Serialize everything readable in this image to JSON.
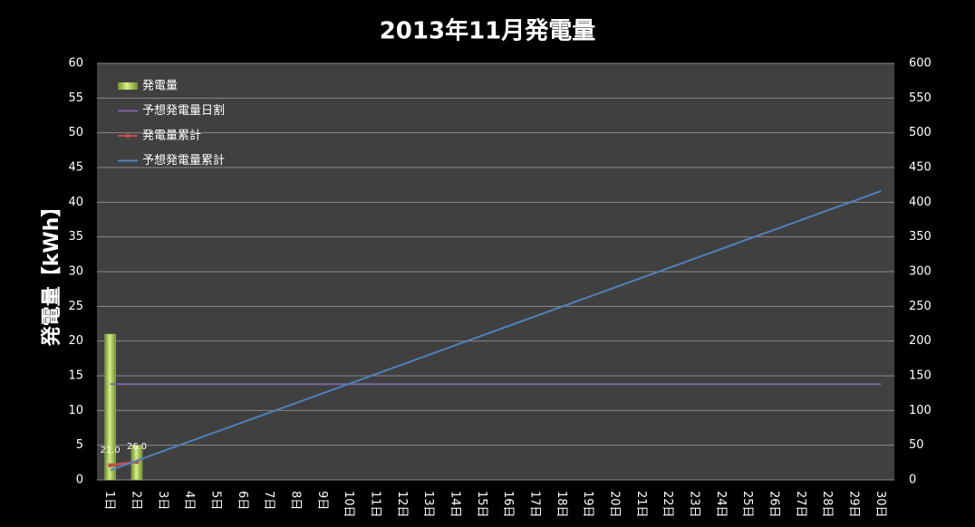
{
  "chart_data": {
    "type": "bar",
    "title": "2013年11月発電量",
    "y_label": "発電量【kWh】",
    "categories": [
      "1日",
      "2日",
      "3日",
      "4日",
      "5日",
      "6日",
      "7日",
      "8日",
      "9日",
      "10日",
      "11日",
      "12日",
      "13日",
      "14日",
      "15日",
      "16日",
      "17日",
      "18日",
      "19日",
      "20日",
      "21日",
      "22日",
      "23日",
      "24日",
      "25日",
      "26日",
      "27日",
      "28日",
      "29日",
      "30日"
    ],
    "series": [
      {
        "name": "発電量",
        "type": "bar",
        "color": "#9bbb59",
        "values": [
          21,
          5,
          null,
          null,
          null,
          null,
          null,
          null,
          null,
          null,
          null,
          null,
          null,
          null,
          null,
          null,
          null,
          null,
          null,
          null,
          null,
          null,
          null,
          null,
          null,
          null,
          null,
          null,
          null,
          null
        ]
      },
      {
        "name": "予想発電量日割",
        "type": "line",
        "color": "#8064a2",
        "values": [
          13.8,
          13.8,
          13.8,
          13.8,
          13.8,
          13.8,
          13.8,
          13.8,
          13.8,
          13.8,
          13.8,
          13.8,
          13.8,
          13.8,
          13.8,
          13.8,
          13.8,
          13.8,
          13.8,
          13.8,
          13.8,
          13.8,
          13.8,
          13.8,
          13.8,
          13.8,
          13.8,
          13.8,
          13.8,
          13.8
        ]
      },
      {
        "name": "発電量累計",
        "type": "line",
        "axis": "y2",
        "color": "#c0504d",
        "marker": true,
        "values": [
          21,
          26,
          null,
          null,
          null,
          null,
          null,
          null,
          null,
          null,
          null,
          null,
          null,
          null,
          null,
          null,
          null,
          null,
          null,
          null,
          null,
          null,
          null,
          null,
          null,
          null,
          null,
          null,
          null,
          null
        ],
        "value_labels": [
          "21.0",
          "26.0",
          null,
          null,
          null,
          null,
          null,
          null,
          null,
          null,
          null,
          null,
          null,
          null,
          null,
          null,
          null,
          null,
          null,
          null,
          null,
          null,
          null,
          null,
          null,
          null,
          null,
          null,
          null,
          null
        ]
      },
      {
        "name": "予想発電量累計",
        "type": "line",
        "axis": "y2",
        "color": "#4f81bd",
        "values": [
          13.9,
          27.7,
          41.6,
          55.5,
          69.4,
          83.2,
          97.1,
          111.0,
          124.8,
          138.7,
          152.6,
          166.4,
          180.3,
          194.2,
          208.1,
          221.9,
          235.8,
          249.7,
          263.5,
          277.4,
          291.3,
          305.1,
          319.0,
          332.9,
          346.8,
          360.6,
          374.5,
          388.4,
          402.2,
          416.1
        ]
      }
    ],
    "ylim": [
      0,
      60
    ],
    "yticks": [
      0,
      5,
      10,
      15,
      20,
      25,
      30,
      35,
      40,
      45,
      50,
      55,
      60
    ],
    "y2lim": [
      0,
      600
    ],
    "y2ticks": [
      0,
      50,
      100,
      150,
      200,
      250,
      300,
      350,
      400,
      450,
      500,
      550,
      600
    ],
    "grid": true,
    "legend": "top-left"
  }
}
